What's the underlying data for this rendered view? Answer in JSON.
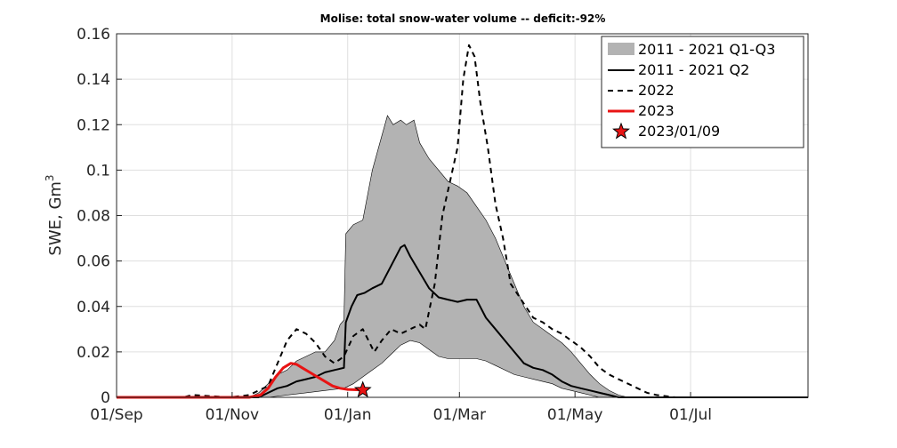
{
  "chart_data": {
    "type": "area",
    "title": "Molise: total snow-water volume -- deficit:-92%",
    "xlabel": "",
    "ylabel": "SWE, Gm",
    "ylabel_superscript": "3",
    "x_unit": "days from 01/Sep",
    "xlim": [
      0,
      365
    ],
    "ylim": [
      0,
      0.16
    ],
    "grid": true,
    "legend_position": "top-right",
    "x_ticks": [
      {
        "label": "01/Sep",
        "day": 0
      },
      {
        "label": "01/Nov",
        "day": 61
      },
      {
        "label": "01/Jan",
        "day": 122
      },
      {
        "label": "01/Mar",
        "day": 181
      },
      {
        "label": "01/May",
        "day": 242
      },
      {
        "label": "01/Jul",
        "day": 303
      }
    ],
    "y_ticks": [
      {
        "label": "0",
        "value": 0
      },
      {
        "label": "0.02",
        "value": 0.02
      },
      {
        "label": "0.04",
        "value": 0.04
      },
      {
        "label": "0.06",
        "value": 0.06
      },
      {
        "label": "0.08",
        "value": 0.08
      },
      {
        "label": "0.1",
        "value": 0.1
      },
      {
        "label": "0.12",
        "value": 0.12
      },
      {
        "label": "0.14",
        "value": 0.14
      },
      {
        "label": "0.16",
        "value": 0.16
      }
    ],
    "series": [
      {
        "name": "2011 - 2021 Q1-Q3",
        "kind": "band",
        "color": "#b3b3b3",
        "upper": [
          [
            0,
            0
          ],
          [
            70,
            0
          ],
          [
            75,
            0.002
          ],
          [
            80,
            0.006
          ],
          [
            85,
            0.01
          ],
          [
            90,
            0.012
          ],
          [
            95,
            0.016
          ],
          [
            100,
            0.018
          ],
          [
            105,
            0.02
          ],
          [
            110,
            0.02
          ],
          [
            115,
            0.025
          ],
          [
            118,
            0.032
          ],
          [
            120,
            0.034
          ],
          [
            121,
            0.072
          ],
          [
            125,
            0.076
          ],
          [
            130,
            0.078
          ],
          [
            135,
            0.1
          ],
          [
            140,
            0.115
          ],
          [
            143,
            0.124
          ],
          [
            146,
            0.12
          ],
          [
            150,
            0.122
          ],
          [
            153,
            0.12
          ],
          [
            157,
            0.122
          ],
          [
            160,
            0.112
          ],
          [
            165,
            0.105
          ],
          [
            170,
            0.1
          ],
          [
            175,
            0.095
          ],
          [
            180,
            0.093
          ],
          [
            185,
            0.09
          ],
          [
            190,
            0.084
          ],
          [
            195,
            0.078
          ],
          [
            200,
            0.07
          ],
          [
            205,
            0.06
          ],
          [
            210,
            0.05
          ],
          [
            215,
            0.04
          ],
          [
            220,
            0.033
          ],
          [
            225,
            0.03
          ],
          [
            230,
            0.027
          ],
          [
            235,
            0.024
          ],
          [
            240,
            0.02
          ],
          [
            245,
            0.015
          ],
          [
            250,
            0.01
          ],
          [
            255,
            0.006
          ],
          [
            260,
            0.003
          ],
          [
            265,
            0.001
          ],
          [
            270,
            0
          ],
          [
            365,
            0
          ]
        ],
        "lower": [
          [
            0,
            0
          ],
          [
            80,
            0
          ],
          [
            90,
            0.001
          ],
          [
            100,
            0.002
          ],
          [
            110,
            0.003
          ],
          [
            120,
            0.004
          ],
          [
            125,
            0.006
          ],
          [
            130,
            0.009
          ],
          [
            135,
            0.012
          ],
          [
            140,
            0.015
          ],
          [
            145,
            0.019
          ],
          [
            150,
            0.023
          ],
          [
            155,
            0.025
          ],
          [
            160,
            0.024
          ],
          [
            165,
            0.021
          ],
          [
            170,
            0.018
          ],
          [
            175,
            0.017
          ],
          [
            180,
            0.017
          ],
          [
            190,
            0.017
          ],
          [
            195,
            0.016
          ],
          [
            200,
            0.014
          ],
          [
            210,
            0.01
          ],
          [
            215,
            0.009
          ],
          [
            220,
            0.008
          ],
          [
            230,
            0.006
          ],
          [
            235,
            0.004
          ],
          [
            240,
            0.003
          ],
          [
            250,
            0.001
          ],
          [
            255,
            0
          ],
          [
            365,
            0
          ]
        ]
      },
      {
        "name": "2011 - 2021 Q2",
        "kind": "line",
        "color": "#000000",
        "style": "solid",
        "points": [
          [
            0,
            0
          ],
          [
            75,
            0
          ],
          [
            80,
            0.002
          ],
          [
            85,
            0.004
          ],
          [
            90,
            0.005
          ],
          [
            95,
            0.007
          ],
          [
            100,
            0.008
          ],
          [
            105,
            0.009
          ],
          [
            110,
            0.011
          ],
          [
            115,
            0.012
          ],
          [
            120,
            0.013
          ],
          [
            121,
            0.033
          ],
          [
            124,
            0.04
          ],
          [
            127,
            0.045
          ],
          [
            131,
            0.046
          ],
          [
            135,
            0.048
          ],
          [
            140,
            0.05
          ],
          [
            145,
            0.058
          ],
          [
            150,
            0.066
          ],
          [
            152,
            0.067
          ],
          [
            155,
            0.062
          ],
          [
            160,
            0.055
          ],
          [
            165,
            0.048
          ],
          [
            170,
            0.044
          ],
          [
            175,
            0.043
          ],
          [
            180,
            0.042
          ],
          [
            185,
            0.043
          ],
          [
            190,
            0.043
          ],
          [
            195,
            0.035
          ],
          [
            200,
            0.03
          ],
          [
            205,
            0.025
          ],
          [
            210,
            0.02
          ],
          [
            215,
            0.015
          ],
          [
            220,
            0.013
          ],
          [
            225,
            0.012
          ],
          [
            230,
            0.01
          ],
          [
            235,
            0.007
          ],
          [
            240,
            0.005
          ],
          [
            245,
            0.004
          ],
          [
            250,
            0.003
          ],
          [
            255,
            0.002
          ],
          [
            260,
            0.001
          ],
          [
            265,
            0
          ],
          [
            365,
            0
          ]
        ]
      },
      {
        "name": "2022",
        "kind": "line",
        "color": "#000000",
        "style": "dashed",
        "points": [
          [
            0,
            0
          ],
          [
            35,
            0
          ],
          [
            40,
            0.001
          ],
          [
            60,
            0
          ],
          [
            70,
            0.001
          ],
          [
            80,
            0.005
          ],
          [
            85,
            0.015
          ],
          [
            90,
            0.025
          ],
          [
            95,
            0.03
          ],
          [
            100,
            0.028
          ],
          [
            105,
            0.024
          ],
          [
            110,
            0.018
          ],
          [
            115,
            0.015
          ],
          [
            120,
            0.018
          ],
          [
            125,
            0.027
          ],
          [
            130,
            0.03
          ],
          [
            133,
            0.025
          ],
          [
            136,
            0.02
          ],
          [
            140,
            0.025
          ],
          [
            145,
            0.03
          ],
          [
            150,
            0.028
          ],
          [
            155,
            0.03
          ],
          [
            160,
            0.032
          ],
          [
            163,
            0.03
          ],
          [
            168,
            0.05
          ],
          [
            172,
            0.08
          ],
          [
            176,
            0.095
          ],
          [
            180,
            0.11
          ],
          [
            183,
            0.14
          ],
          [
            186,
            0.155
          ],
          [
            189,
            0.15
          ],
          [
            192,
            0.13
          ],
          [
            196,
            0.11
          ],
          [
            200,
            0.085
          ],
          [
            204,
            0.07
          ],
          [
            208,
            0.05
          ],
          [
            212,
            0.045
          ],
          [
            216,
            0.04
          ],
          [
            220,
            0.035
          ],
          [
            225,
            0.033
          ],
          [
            230,
            0.03
          ],
          [
            235,
            0.028
          ],
          [
            240,
            0.025
          ],
          [
            245,
            0.022
          ],
          [
            250,
            0.018
          ],
          [
            255,
            0.013
          ],
          [
            260,
            0.01
          ],
          [
            265,
            0.008
          ],
          [
            270,
            0.006
          ],
          [
            275,
            0.004
          ],
          [
            280,
            0.002
          ],
          [
            285,
            0.001
          ],
          [
            295,
            0
          ],
          [
            365,
            0
          ]
        ]
      },
      {
        "name": "2023",
        "kind": "line",
        "color": "#e81414",
        "style": "solid",
        "points": [
          [
            0,
            0
          ],
          [
            70,
            0
          ],
          [
            76,
            0.001
          ],
          [
            80,
            0.004
          ],
          [
            84,
            0.009
          ],
          [
            88,
            0.013
          ],
          [
            92,
            0.015
          ],
          [
            95,
            0.0145
          ],
          [
            98,
            0.013
          ],
          [
            102,
            0.011
          ],
          [
            106,
            0.009
          ],
          [
            110,
            0.007
          ],
          [
            114,
            0.005
          ],
          [
            118,
            0.004
          ],
          [
            122,
            0.0035
          ],
          [
            130,
            0.0032
          ]
        ]
      }
    ],
    "marker": {
      "name": "2023/01/09",
      "kind": "star",
      "x": 130,
      "y": 0.0032,
      "color": "#e81414"
    }
  }
}
